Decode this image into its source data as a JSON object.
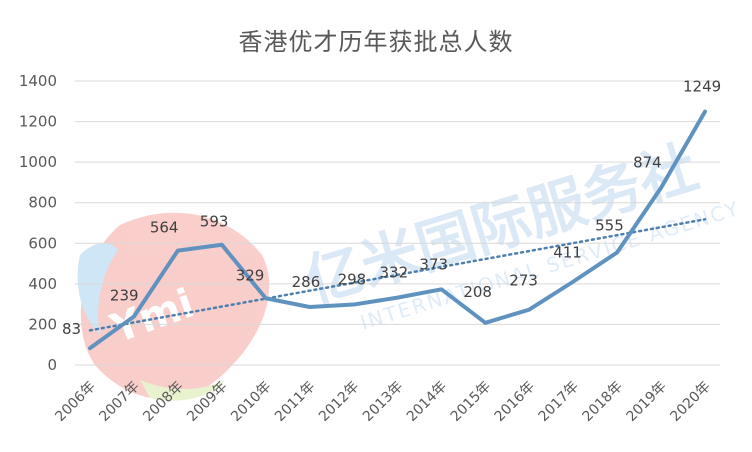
{
  "chart_data": {
    "type": "line",
    "title": "香港优才历年获批总人数",
    "xlabel": "",
    "ylabel": "",
    "categories": [
      "2006年",
      "2007年",
      "2008年",
      "2009年",
      "2010年",
      "2011年",
      "2012年",
      "2013年",
      "2014年",
      "2015年",
      "2016年",
      "2017年",
      "2018年",
      "2019年",
      "2020年"
    ],
    "series": [
      {
        "values": [
          83,
          239,
          564,
          593,
          329,
          286,
          298,
          332,
          373,
          208,
          273,
          411,
          555,
          874,
          1249
        ]
      }
    ],
    "trendline": {
      "type": "linear",
      "style": "dotted"
    },
    "ylim": [
      0,
      1400
    ],
    "yticks": [
      0,
      200,
      400,
      600,
      800,
      1000,
      1200,
      1400
    ],
    "grid": true,
    "legend": "none",
    "colors": {
      "line": "#6092c0",
      "trend": "#4f7faf",
      "grid": "#d9d9d9",
      "text": "#595959"
    }
  },
  "watermark": {
    "brand_cn": "亿米国际服务社",
    "brand_en": "INTERNATIONAL SERVICE AGENCY",
    "logo_text": "Ymi"
  }
}
